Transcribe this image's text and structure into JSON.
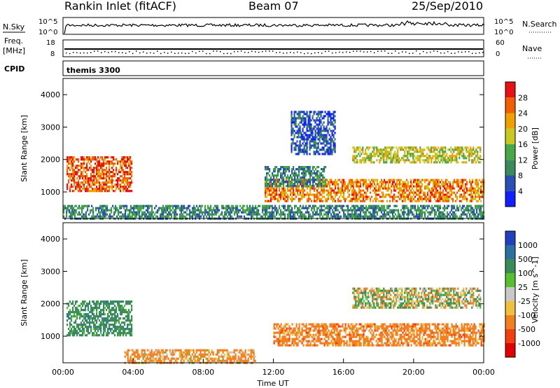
{
  "header": {
    "station": "Rankin Inlet (fitACF)",
    "beam": "Beam 07",
    "date": "25/Sep/2010"
  },
  "top_panel": {
    "left_label": "N.Sky",
    "right_label": "N.Search",
    "left_ticks": [
      "10^5",
      "10^0"
    ],
    "right_ticks": [
      "10^5",
      "10^0"
    ]
  },
  "freq_panel": {
    "left_label_1": "Freq.",
    "left_label_2": "[MHz]",
    "right_label": "Nave",
    "left_ticks": [
      "18",
      "8"
    ],
    "right_ticks": [
      "60",
      "0"
    ]
  },
  "cpid_panel": {
    "label": "CPID",
    "value": "themis 3300"
  },
  "x_axis": {
    "label": "Time UT",
    "ticks": [
      "00:00",
      "04:00",
      "08:00",
      "12:00",
      "16:00",
      "20:00",
      "00:00"
    ]
  },
  "chart_data": [
    {
      "type": "heatmap",
      "title": "Power",
      "ylabel": "Slant Range [km]",
      "yticks": [
        1000,
        2000,
        3000,
        4000
      ],
      "ylim": [
        180,
        4500
      ],
      "xlabel": "Time UT",
      "xlim_hours": [
        0,
        24
      ],
      "colorbar": {
        "label": "Power [dB]",
        "ticks": [
          4,
          8,
          12,
          16,
          20,
          24,
          28
        ],
        "colors": [
          "#1020ff",
          "#2a4fb0",
          "#3a8a5a",
          "#48a848",
          "#c8c820",
          "#f0a000",
          "#f06000",
          "#e81010"
        ]
      },
      "regions": [
        {
          "t0": 0.2,
          "t1": 3.9,
          "r0": 1000,
          "r1": 2100,
          "power": 26
        },
        {
          "t0": 0.0,
          "t1": 24.0,
          "r0": 200,
          "r1": 600,
          "power": 10
        },
        {
          "t0": 11.5,
          "t1": 24.0,
          "r0": 700,
          "r1": 1400,
          "power": 24
        },
        {
          "t0": 16.5,
          "t1": 23.8,
          "r0": 1900,
          "r1": 2400,
          "power": 18
        },
        {
          "t0": 11.5,
          "t1": 15.0,
          "r0": 1200,
          "r1": 1800,
          "power": 10
        },
        {
          "t0": 13.0,
          "t1": 15.5,
          "r0": 2200,
          "r1": 3500,
          "power": 6
        }
      ]
    },
    {
      "type": "heatmap",
      "title": "Velocity",
      "ylabel": "Slant Range [km]",
      "yticks": [
        1000,
        2000,
        3000,
        4000
      ],
      "ylim": [
        180,
        4500
      ],
      "xlabel": "Time UT",
      "xlim_hours": [
        0,
        24
      ],
      "colorbar": {
        "label": "Velocity [m s^-1]",
        "ticks": [
          1000,
          500,
          100,
          25,
          -25,
          -100,
          -500,
          -1000
        ],
        "colors": [
          "#2040c0",
          "#2a70a0",
          "#3a8a5a",
          "#58c030",
          "#c8c8c8",
          "#f0c040",
          "#f08020",
          "#f04010",
          "#e00000"
        ]
      },
      "regions": [
        {
          "t0": 0.2,
          "t1": 3.9,
          "r0": 1000,
          "r1": 2100,
          "velocity": 300
        },
        {
          "t0": 12.0,
          "t1": 24.0,
          "r0": 700,
          "r1": 1400,
          "velocity": -300
        },
        {
          "t0": 16.5,
          "t1": 23.8,
          "r0": 1900,
          "r1": 2500,
          "velocity": 0
        },
        {
          "t0": 3.5,
          "t1": 11.0,
          "r0": 200,
          "r1": 600,
          "velocity": -200
        }
      ]
    }
  ]
}
